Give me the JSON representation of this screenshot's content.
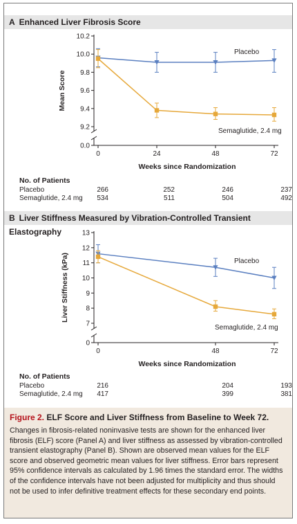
{
  "panelA": {
    "letter": "A",
    "title": "Enhanced Liver Fibrosis Score",
    "chart_data": {
      "type": "line",
      "ylabel": "Mean Score",
      "xlabel": "Weeks since Randomization",
      "x": [
        0,
        24,
        48,
        72
      ],
      "y_ticks": [
        "0.0",
        "9.2",
        "9.4",
        "9.6",
        "9.8",
        "10.0",
        "10.2"
      ],
      "x_ticks": [
        "0",
        "24",
        "48",
        "72"
      ],
      "ylim": [
        9.2,
        10.2
      ],
      "axis_break": true,
      "series": [
        {
          "name": "Placebo",
          "color": "#5a7fc0",
          "marker": "triangle-down",
          "values": [
            9.96,
            9.91,
            9.91,
            9.93
          ],
          "ci_low": [
            9.86,
            9.8,
            9.8,
            9.8
          ],
          "ci_high": [
            10.06,
            10.02,
            10.02,
            10.05
          ]
        },
        {
          "name": "Semaglutide, 2.4 mg",
          "color": "#e6a83a",
          "marker": "square",
          "values": [
            9.95,
            9.38,
            9.34,
            9.33
          ],
          "ci_low": [
            9.85,
            9.3,
            9.28,
            9.26
          ],
          "ci_high": [
            10.05,
            9.46,
            9.41,
            9.41
          ]
        }
      ]
    },
    "patients": {
      "header": "No. of Patients",
      "rows": [
        {
          "label": "Placebo",
          "counts": [
            "266",
            "252",
            "246",
            "237"
          ]
        },
        {
          "label": "Semaglutide, 2.4 mg",
          "counts": [
            "534",
            "511",
            "504",
            "492"
          ]
        }
      ]
    }
  },
  "panelB": {
    "letter": "B",
    "title": "Liver Stiffness Measured by Vibration-Controlled Transient Elastography",
    "chart_data": {
      "type": "line",
      "ylabel": "Liver Stiffness (kPa)",
      "xlabel": "Weeks since Randomization",
      "x": [
        0,
        48,
        72
      ],
      "y_ticks": [
        "0",
        "7",
        "8",
        "9",
        "10",
        "11",
        "12",
        "13"
      ],
      "x_ticks": [
        "0",
        "48",
        "72"
      ],
      "ylim": [
        7,
        13
      ],
      "axis_break": true,
      "series": [
        {
          "name": "Placebo",
          "color": "#5a7fc0",
          "marker": "triangle-down",
          "values": [
            11.6,
            10.7,
            10.0
          ],
          "ci_low": [
            11.0,
            10.1,
            9.3
          ],
          "ci_high": [
            12.2,
            11.3,
            10.7
          ]
        },
        {
          "name": "Semaglutide, 2.4 mg",
          "color": "#e6a83a",
          "marker": "square",
          "values": [
            11.4,
            8.1,
            7.6
          ],
          "ci_low": [
            11.0,
            7.8,
            7.3
          ],
          "ci_high": [
            11.8,
            8.5,
            7.95
          ]
        }
      ]
    },
    "patients": {
      "header": "No. of Patients",
      "rows": [
        {
          "label": "Placebo",
          "counts": [
            "216",
            "204",
            "193"
          ]
        },
        {
          "label": "Semaglutide, 2.4 mg",
          "counts": [
            "417",
            "399",
            "381"
          ]
        }
      ]
    }
  },
  "caption": {
    "fig_label": "Figure 2.",
    "title": "ELF Score and Liver Stiffness from Baseline to Week 72.",
    "body": "Changes in fibrosis-related noninvasive tests are shown for the enhanced liver fibrosis (ELF) score (Panel A) and liver stiffness as assessed by vibration-controlled transient elastography (Panel B). Shown are observed mean values for the ELF score and observed geometric mean values for liver stiffness. Error bars represent 95% confidence intervals as calculated by 1.96 times the standard error. The widths of the confidence intervals have not been adjusted for multiplicity and thus should not be used to infer definitive treatment effects for these secondary end points."
  }
}
